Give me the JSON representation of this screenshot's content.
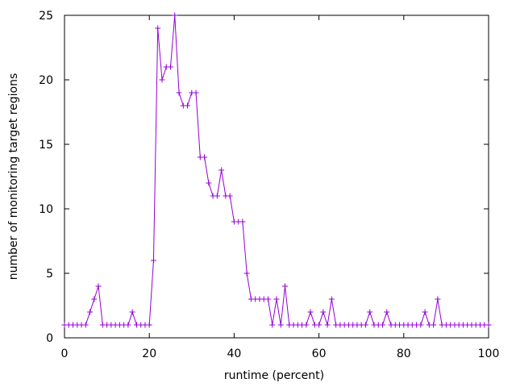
{
  "chart_data": {
    "type": "line",
    "title": "",
    "xlabel": "runtime (percent)",
    "ylabel": "number of monitoring target regions",
    "xlim": [
      0,
      100
    ],
    "ylim": [
      0,
      25
    ],
    "xticks": [
      "0",
      "20",
      "40",
      "60",
      "80",
      "100"
    ],
    "yticks": [
      "0",
      "5",
      "10",
      "15",
      "20",
      "25"
    ],
    "grid": false,
    "legend": "none",
    "marker": "plus",
    "series": [
      {
        "color": "#9400d3",
        "x": [
          0,
          1,
          2,
          3,
          4,
          5,
          6,
          7,
          8,
          9,
          10,
          11,
          12,
          13,
          14,
          15,
          16,
          17,
          18,
          19,
          20,
          21,
          22,
          23,
          24,
          25,
          26,
          27,
          28,
          29,
          30,
          31,
          32,
          33,
          34,
          35,
          36,
          37,
          38,
          39,
          40,
          41,
          42,
          43,
          44,
          45,
          46,
          47,
          48,
          49,
          50,
          51,
          52,
          53,
          54,
          55,
          56,
          57,
          58,
          59,
          60,
          61,
          62,
          63,
          64,
          65,
          66,
          67,
          68,
          69,
          70,
          71,
          72,
          73,
          74,
          75,
          76,
          77,
          78,
          79,
          80,
          81,
          82,
          83,
          84,
          85,
          86,
          87,
          88,
          89,
          90,
          91,
          92,
          93,
          94,
          95,
          96,
          97,
          98,
          99,
          100
        ],
        "y": [
          1,
          1,
          1,
          1,
          1,
          1,
          2,
          3,
          4,
          1,
          1,
          1,
          1,
          1,
          1,
          1,
          2,
          1,
          1,
          1,
          1,
          6,
          24,
          20,
          21,
          21,
          25,
          19,
          18,
          18,
          19,
          19,
          14,
          14,
          12,
          11,
          11,
          13,
          11,
          11,
          9,
          9,
          9,
          5,
          3,
          3,
          3,
          3,
          3,
          1,
          3,
          1,
          4,
          1,
          1,
          1,
          1,
          1,
          2,
          1,
          1,
          2,
          1,
          3,
          1,
          1,
          1,
          1,
          1,
          1,
          1,
          1,
          2,
          1,
          1,
          1,
          2,
          1,
          1,
          1,
          1,
          1,
          1,
          1,
          1,
          2,
          1,
          1,
          3,
          1,
          1,
          1,
          1,
          1,
          1,
          1,
          1,
          1,
          1,
          1,
          1
        ]
      }
    ]
  }
}
